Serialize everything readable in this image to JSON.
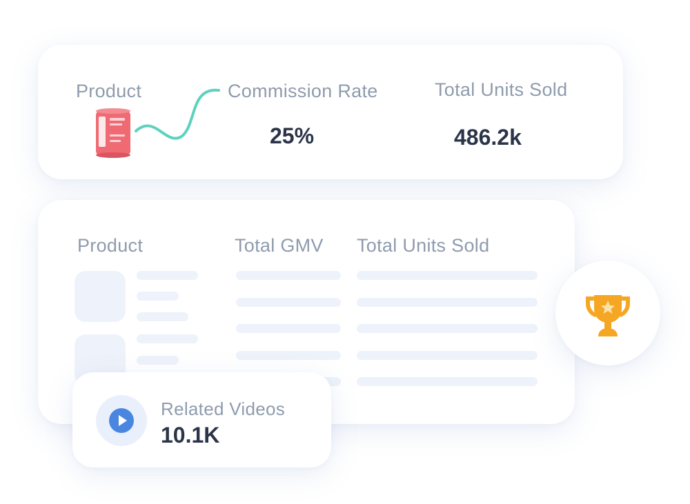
{
  "top_card": {
    "product_label": "Product",
    "commission_label": "Commission Rate",
    "commission_value": "25%",
    "units_label": "Total Units Sold",
    "units_value": "486.2k"
  },
  "table_card": {
    "columns": [
      "Product",
      "Total GMV",
      "Total Units Sold"
    ]
  },
  "video_card": {
    "label": "Related Videos",
    "value": "10.1K"
  },
  "colors": {
    "label": "#8e9bad",
    "value": "#2b3448",
    "skeleton": "#eef2fa",
    "connector": "#5dd2bd",
    "play": "#4a86e0",
    "trophy": "#f5a623",
    "product_can": "#ef6a73"
  },
  "icons": {
    "play": "play-icon",
    "trophy": "trophy-icon",
    "product": "product-can-image"
  }
}
